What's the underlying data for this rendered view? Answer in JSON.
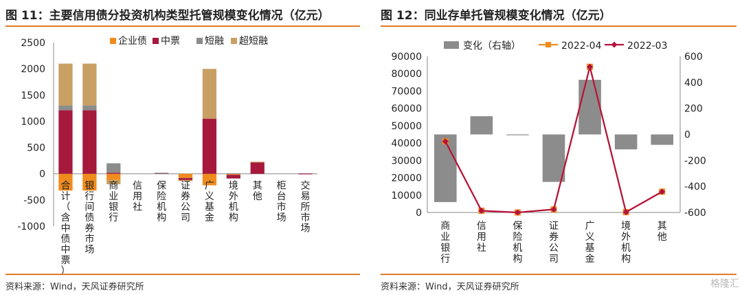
{
  "left": {
    "title": "图 11：主要信用债分投资机构类型托管规模变化情况（亿元）",
    "source": "资料来源：Wind，天风证券研究所"
  },
  "right": {
    "title": "图 12：同业存单托管规模变化情况（亿元）",
    "source": "资料来源：Wind，天风证券研究所"
  },
  "watermark": "格隆汇",
  "chart_data": [
    {
      "type": "bar",
      "stacked": true,
      "title": "",
      "categories": [
        "合计（含中债中票）",
        "银行间债券市场",
        "商业银行",
        "信用社",
        "保险机构",
        "证券公司",
        "广义基金",
        "境外机构",
        "其他",
        "柜台市场",
        "交易所市场"
      ],
      "series": [
        {
          "name": "企业债",
          "color": "#f08c1e",
          "values": [
            -320,
            -320,
            -120,
            0,
            0,
            -80,
            -220,
            -20,
            0,
            0,
            0
          ]
        },
        {
          "name": "中票",
          "color": "#a6193c",
          "values": [
            1210,
            1210,
            20,
            0,
            15,
            -40,
            1050,
            -70,
            220,
            0,
            5
          ]
        },
        {
          "name": "短融",
          "color": "#8c8c8c",
          "values": [
            90,
            90,
            180,
            0,
            5,
            0,
            0,
            10,
            0,
            0,
            0
          ]
        },
        {
          "name": "超短融",
          "color": "#c8a064",
          "values": [
            800,
            800,
            -80,
            0,
            0,
            -20,
            950,
            0,
            10,
            0,
            0
          ]
        }
      ],
      "ylim": [
        -1000,
        2500
      ],
      "yticks": [
        -1000,
        -500,
        0,
        500,
        1000,
        1500,
        2000,
        2500
      ],
      "legend_position": "top"
    },
    {
      "type": "bar+line",
      "title": "",
      "categories": [
        "商业银行",
        "信用社",
        "保险机构",
        "证券公司",
        "广义基金",
        "境外机构",
        "其他"
      ],
      "bar_series": {
        "name": "变化（右轴）",
        "color": "#8c8c8c",
        "axis": "right",
        "values": [
          -520,
          140,
          -5,
          -365,
          420,
          -115,
          -80
        ]
      },
      "line_series": [
        {
          "name": "2022-04",
          "color": "#f08c1e",
          "marker": "square",
          "axis": "left",
          "values": [
            41000,
            1000,
            0,
            1800,
            84000,
            200,
            12000
          ]
        },
        {
          "name": "2022-03",
          "color": "#b3123e",
          "marker": "diamond",
          "axis": "left",
          "values": [
            41000,
            1000,
            0,
            1800,
            84000,
            200,
            12000
          ]
        }
      ],
      "ylim_left": [
        0,
        90000
      ],
      "yticks_left": [
        0,
        10000,
        20000,
        30000,
        40000,
        50000,
        60000,
        70000,
        80000,
        90000
      ],
      "ylim_right": [
        -600,
        600
      ],
      "yticks_right": [
        -600,
        -400,
        -200,
        0,
        200,
        400,
        600
      ],
      "legend_position": "top"
    }
  ]
}
